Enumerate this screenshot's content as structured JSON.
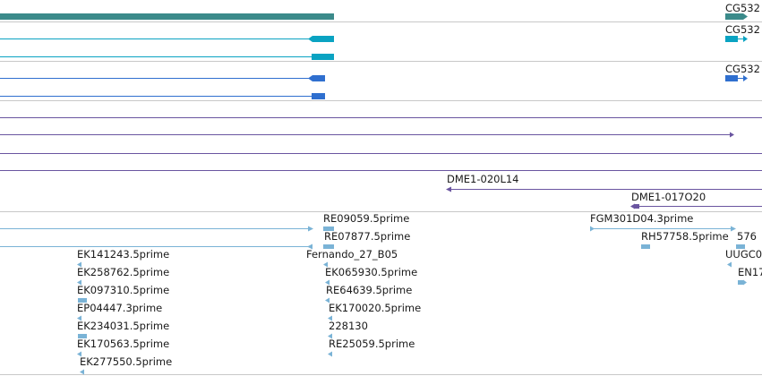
{
  "colors": {
    "teal": "#3b8a8a",
    "cyan": "#0aa3c2",
    "blue": "#2f6fcf",
    "purple": "#6a55a0",
    "est": "#7ab3d6",
    "separator": "#c8c8c8"
  },
  "gene_track": {
    "labels": [
      "CG532",
      "CG532",
      "CG532"
    ]
  },
  "clone_track": {
    "labels": [
      "DME1-020L14",
      "DME1-017O20"
    ]
  },
  "est_track": {
    "labels": [
      "RE09059.5prime",
      "RE07877.5prime",
      "Fernando_27_B05",
      "EK065930.5prime",
      "RE64639.5prime",
      "EK170020.5prime",
      "228130",
      "RE25059.5prime",
      "EK141243.5prime",
      "EK258762.5prime",
      "EK097310.5prime",
      "EP04447.3prime",
      "EK234031.5prime",
      "EK170563.5prime",
      "EK277550.5prime",
      "FGM301D04.3prime",
      "RH57758.5prime",
      "576",
      "UUGC0",
      "EN17"
    ]
  }
}
